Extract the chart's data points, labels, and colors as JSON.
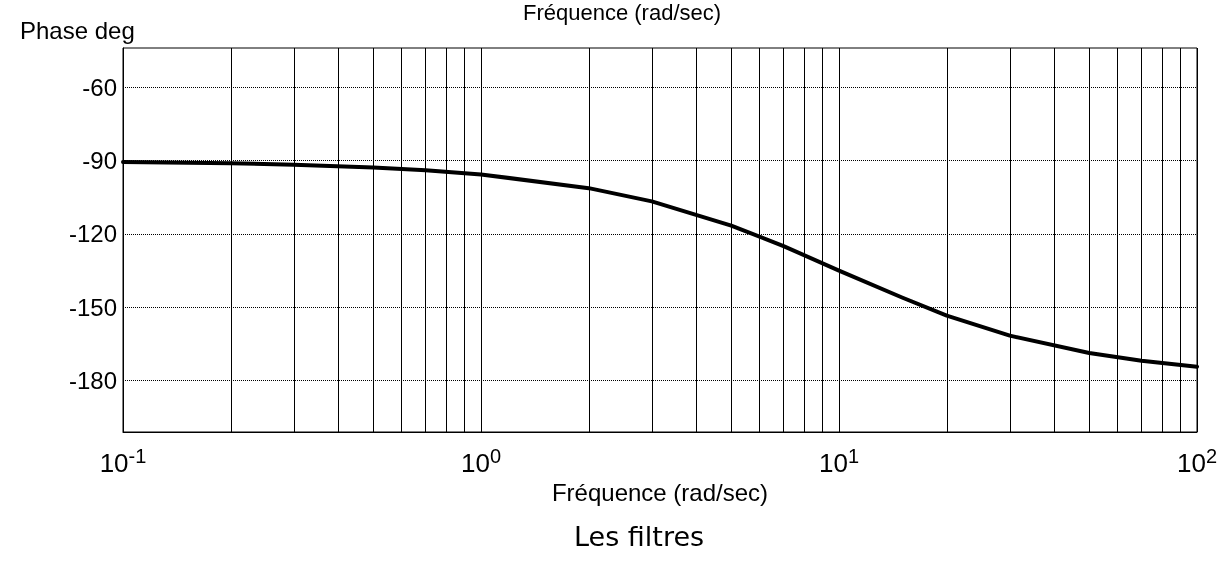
{
  "chart_data": {
    "type": "line",
    "ylabel": "Phase deg",
    "xlabel": "Fréquence (rad/sec)",
    "annotations": [
      "Fréquence (rad/sec)",
      "Les filtres"
    ],
    "x": [
      0.1,
      0.2,
      0.3,
      0.5,
      0.7,
      1,
      2,
      3,
      5,
      7,
      10,
      15,
      20,
      30,
      50,
      70,
      100
    ],
    "series": [
      {
        "color": "#000000",
        "values": [
          -90.6,
          -91.1,
          -91.7,
          -92.9,
          -94,
          -95.7,
          -101.3,
          -106.7,
          -116.6,
          -125,
          -135,
          -146,
          -153.4,
          -161.6,
          -168.7,
          -171.9,
          -174.3
        ]
      }
    ],
    "log": "x",
    "xlim": [
      0.1,
      100
    ],
    "ylim": [
      -201,
      -44
    ],
    "xticks": [
      {
        "value": 0.1,
        "label": "10$^{-1}$"
      },
      {
        "value": 0.2,
        "label": null
      },
      {
        "value": 0.3,
        "label": null
      },
      {
        "value": 0.4,
        "label": null
      },
      {
        "value": 0.5,
        "label": null
      },
      {
        "value": 0.6,
        "label": null
      },
      {
        "value": 0.7,
        "label": null
      },
      {
        "value": 0.8,
        "label": null
      },
      {
        "value": 0.9,
        "label": null
      },
      {
        "value": 1,
        "label": "10$^{0}$"
      },
      {
        "value": 2,
        "label": null
      },
      {
        "value": 3,
        "label": null
      },
      {
        "value": 4,
        "label": null
      },
      {
        "value": 5,
        "label": null
      },
      {
        "value": 6,
        "label": null
      },
      {
        "value": 7,
        "label": null
      },
      {
        "value": 8,
        "label": null
      },
      {
        "value": 9,
        "label": null
      },
      {
        "value": 10,
        "label": "10$^{1}$"
      },
      {
        "value": 20,
        "label": null
      },
      {
        "value": 30,
        "label": null
      },
      {
        "value": 40,
        "label": null
      },
      {
        "value": 50,
        "label": null
      },
      {
        "value": 60,
        "label": null
      },
      {
        "value": 70,
        "label": null
      },
      {
        "value": 80,
        "label": null
      },
      {
        "value": 90,
        "label": null
      },
      {
        "value": 100,
        "label": "10$^{2}$"
      }
    ],
    "yticks": [
      -60,
      -90,
      -120,
      -150,
      -180
    ],
    "grid": true,
    "marker": "none",
    "line_style": "solid"
  }
}
